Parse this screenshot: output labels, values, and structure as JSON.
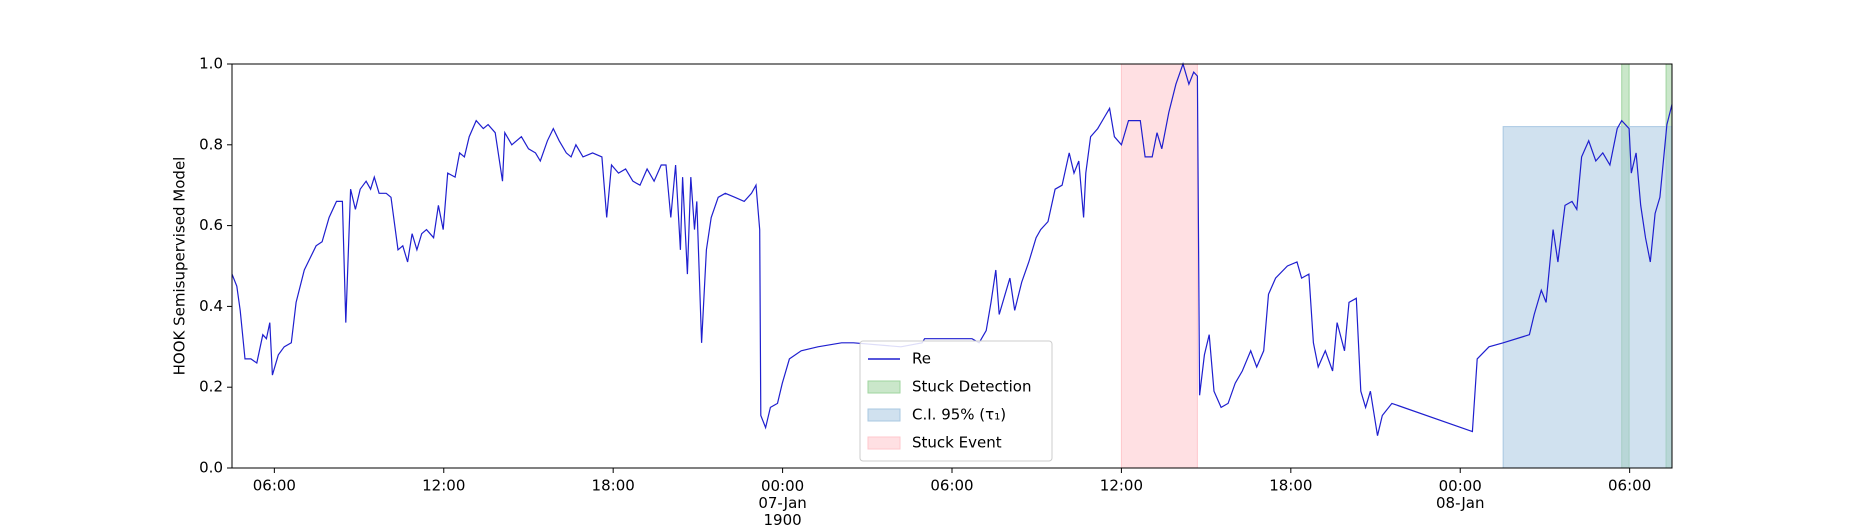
{
  "chart_data": {
    "type": "line",
    "ylabel": "HOOK Semisupervised Model",
    "xlim": [
      4.5,
      55.5
    ],
    "ylim": [
      0,
      1
    ],
    "xticks": [
      {
        "value": 6,
        "label": "06:00"
      },
      {
        "value": 12,
        "label": "12:00"
      },
      {
        "value": 18,
        "label": "18:00"
      },
      {
        "value": 24,
        "label": "00:00\n07-Jan\n1900"
      },
      {
        "value": 30,
        "label": "06:00"
      },
      {
        "value": 36,
        "label": "12:00"
      },
      {
        "value": 42,
        "label": "18:00"
      },
      {
        "value": 48,
        "label": "00:00\n08-Jan"
      },
      {
        "value": 54,
        "label": "06:00"
      }
    ],
    "yticks": [
      {
        "value": 0,
        "label": "0.0"
      },
      {
        "value": 0.2,
        "label": "0.2"
      },
      {
        "value": 0.4,
        "label": "0.4"
      },
      {
        "value": 0.6,
        "label": "0.6"
      },
      {
        "value": 0.8,
        "label": "0.8"
      },
      {
        "value": 1,
        "label": "1.0"
      }
    ],
    "legend": "lower center",
    "x": [
      4.5,
      4.67,
      4.79,
      4.96,
      5.17,
      5.38,
      5.59,
      5.72,
      5.84,
      5.93,
      6.14,
      6.35,
      6.6,
      6.77,
      7.06,
      7.27,
      7.48,
      7.69,
      7.94,
      8.2,
      8.41,
      8.53,
      8.7,
      8.87,
      9.04,
      9.25,
      9.41,
      9.54,
      9.71,
      9.96,
      10.13,
      10.38,
      10.55,
      10.72,
      10.88,
      11.05,
      11.22,
      11.39,
      11.64,
      11.81,
      11.98,
      12.14,
      12.4,
      12.56,
      12.73,
      12.9,
      13.15,
      13.4,
      13.57,
      13.82,
      14.08,
      14.16,
      14.41,
      14.75,
      15.0,
      15.25,
      15.42,
      15.67,
      15.88,
      16.09,
      16.34,
      16.51,
      16.68,
      16.93,
      17.27,
      17.6,
      17.77,
      17.94,
      18.19,
      18.44,
      18.7,
      18.95,
      19.2,
      19.45,
      19.7,
      19.87,
      20.04,
      20.21,
      20.38,
      20.46,
      20.63,
      20.75,
      20.88,
      20.96,
      21.13,
      21.3,
      21.47,
      21.72,
      21.97,
      22.31,
      22.64,
      22.9,
      23.06,
      23.19,
      23.23,
      23.4,
      23.57,
      23.82,
      23.99,
      24.24,
      24.66,
      25.25,
      26.09,
      26.51,
      28.19,
      28.94,
      29.03,
      30.71,
      30.96,
      31.21,
      31.38,
      31.55,
      31.67,
      31.88,
      32.05,
      32.22,
      32.47,
      32.72,
      32.98,
      33.14,
      33.4,
      33.65,
      33.9,
      34.15,
      34.32,
      34.49,
      34.66,
      34.74,
      34.91,
      35.16,
      35.41,
      35.58,
      35.75,
      36.0,
      36.25,
      36.5,
      36.67,
      36.84,
      37.09,
      37.26,
      37.43,
      37.68,
      37.93,
      38.18,
      38.39,
      38.56,
      38.69,
      38.77,
      38.94,
      39.11,
      39.28,
      39.53,
      39.78,
      40.03,
      40.28,
      40.58,
      40.79,
      41.04,
      41.21,
      41.46,
      41.88,
      42.22,
      42.38,
      42.64,
      42.8,
      42.97,
      43.22,
      43.48,
      43.64,
      43.9,
      44.06,
      44.32,
      44.48,
      44.65,
      44.82,
      45.07,
      45.24,
      45.58,
      48.43,
      48.6,
      49.02,
      49.52,
      50.45,
      50.62,
      50.87,
      51.04,
      51.29,
      51.46,
      51.71,
      51.96,
      52.13,
      52.3,
      52.55,
      52.8,
      53.05,
      53.3,
      53.56,
      53.72,
      53.98,
      54.06,
      54.23,
      54.39,
      54.56,
      54.73,
      54.9,
      55.07,
      55.32,
      55.5
    ],
    "series": [
      {
        "name": "Re",
        "color": "#1f1fcf",
        "values": [
          0.48,
          0.45,
          0.39,
          0.27,
          0.27,
          0.26,
          0.33,
          0.32,
          0.36,
          0.23,
          0.28,
          0.3,
          0.31,
          0.41,
          0.49,
          0.52,
          0.55,
          0.56,
          0.62,
          0.66,
          0.66,
          0.36,
          0.69,
          0.64,
          0.69,
          0.71,
          0.69,
          0.72,
          0.68,
          0.68,
          0.67,
          0.54,
          0.55,
          0.51,
          0.58,
          0.54,
          0.58,
          0.59,
          0.57,
          0.65,
          0.59,
          0.73,
          0.72,
          0.78,
          0.77,
          0.82,
          0.86,
          0.84,
          0.85,
          0.83,
          0.71,
          0.83,
          0.8,
          0.82,
          0.79,
          0.78,
          0.76,
          0.81,
          0.84,
          0.81,
          0.78,
          0.77,
          0.8,
          0.77,
          0.78,
          0.77,
          0.62,
          0.75,
          0.73,
          0.74,
          0.71,
          0.7,
          0.74,
          0.71,
          0.75,
          0.75,
          0.62,
          0.75,
          0.54,
          0.72,
          0.48,
          0.72,
          0.59,
          0.66,
          0.31,
          0.54,
          0.62,
          0.67,
          0.68,
          0.67,
          0.66,
          0.68,
          0.7,
          0.59,
          0.13,
          0.1,
          0.15,
          0.16,
          0.21,
          0.27,
          0.29,
          0.3,
          0.31,
          0.31,
          0.3,
          0.31,
          0.32,
          0.32,
          0.31,
          0.34,
          0.41,
          0.49,
          0.38,
          0.43,
          0.47,
          0.39,
          0.46,
          0.51,
          0.57,
          0.59,
          0.61,
          0.69,
          0.7,
          0.78,
          0.73,
          0.76,
          0.62,
          0.73,
          0.82,
          0.84,
          0.87,
          0.89,
          0.82,
          0.8,
          0.86,
          0.86,
          0.86,
          0.77,
          0.77,
          0.83,
          0.79,
          0.88,
          0.95,
          1.0,
          0.95,
          0.98,
          0.97,
          0.18,
          0.28,
          0.33,
          0.19,
          0.15,
          0.16,
          0.21,
          0.24,
          0.29,
          0.25,
          0.29,
          0.43,
          0.47,
          0.5,
          0.51,
          0.47,
          0.48,
          0.31,
          0.25,
          0.29,
          0.24,
          0.36,
          0.29,
          0.41,
          0.42,
          0.19,
          0.15,
          0.19,
          0.08,
          0.13,
          0.16,
          0.09,
          0.27,
          0.3,
          0.31,
          0.33,
          0.38,
          0.44,
          0.41,
          0.59,
          0.51,
          0.65,
          0.66,
          0.64,
          0.77,
          0.81,
          0.76,
          0.78,
          0.75,
          0.84,
          0.86,
          0.84,
          0.73,
          0.78,
          0.65,
          0.57,
          0.51,
          0.63,
          0.67,
          0.85,
          0.9
        ]
      }
    ],
    "spans": [
      {
        "name": "Stuck Detection",
        "color": "#9fd49f",
        "ranges": [
          [
            53.72,
            53.98
          ],
          [
            55.29,
            55.5
          ]
        ]
      },
      {
        "name": "C.I. 95% (τ₁)",
        "color": "#a9c8e2",
        "ranges": [
          [
            49.52,
            55.5
          ]
        ],
        "top": 0.845
      },
      {
        "name": "Stuck Event",
        "color": "#ffc7cc",
        "ranges": [
          [
            36.0,
            38.69
          ]
        ]
      }
    ]
  }
}
